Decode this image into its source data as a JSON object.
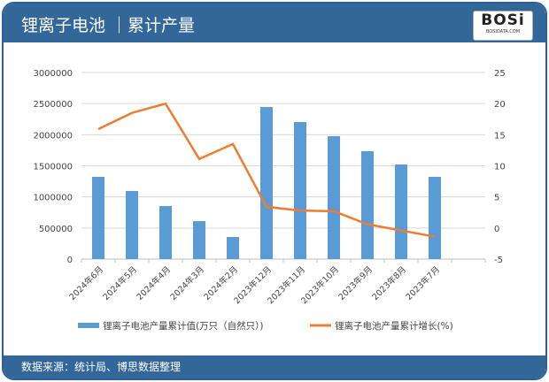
{
  "header": {
    "title": "锂离子电池 ｜累计产量",
    "logo_text": "BOSi",
    "logo_sub": "BOSIDATA.COM"
  },
  "footer": {
    "source": "数据来源：统计局、博思数据整理"
  },
  "colors": {
    "bar": "#5b9bd5",
    "line": "#ed7d31",
    "header": "#336699"
  },
  "chart_data": {
    "type": "bar+line",
    "categories": [
      "2024年6月",
      "2024年5月",
      "2024年4月",
      "2024年3月",
      "2024年2月",
      "2023年12月",
      "2023年11月",
      "2023年10月",
      "2023年9月",
      "2023年8月",
      "2023年7月"
    ],
    "series": [
      {
        "name": "锂离子电池产量累计值(万只（自然只）)",
        "type": "bar",
        "axis": "left",
        "values": [
          1322000,
          1095000,
          853000,
          611000,
          355000,
          2445000,
          2204000,
          1976000,
          1735000,
          1521000,
          1322000
        ]
      },
      {
        "name": "锂离子电池产量累计增长(%)",
        "type": "line",
        "axis": "right",
        "values": [
          15.9,
          18.5,
          20,
          11.1,
          13.5,
          3.4,
          2.8,
          2.7,
          0.6,
          -0.4,
          -1.4
        ]
      }
    ],
    "left_axis": {
      "range": [
        0,
        3000000
      ],
      "ticks": [
        "0",
        "500000",
        "1000000",
        "1500000",
        "2000000",
        "2500000",
        "3000000"
      ]
    },
    "right_axis": {
      "range": [
        -5,
        25
      ],
      "ticks": [
        "-5",
        "0",
        "5",
        "10",
        "15",
        "20",
        "25"
      ]
    },
    "grid": true,
    "legend": "bottom"
  }
}
